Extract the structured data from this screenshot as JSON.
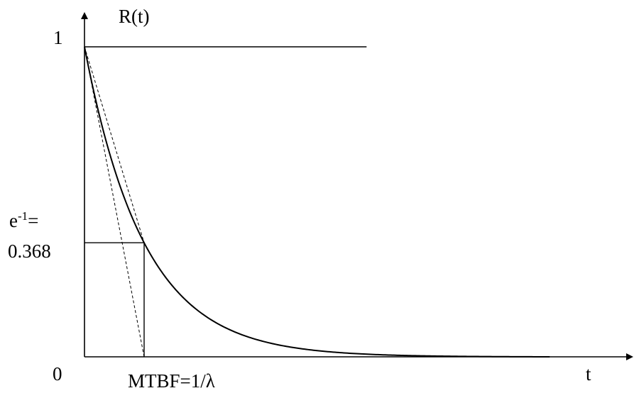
{
  "chart_data": {
    "type": "line",
    "ylabel": "R(t)",
    "xlabel": "t",
    "origin_label": "0",
    "y_tick_label": "1",
    "e_label_base": "e",
    "e_label_exponent": "-1",
    "e_label_suffix": "=",
    "e_value_label": "0.368",
    "mtbf_label": "MTBF=1/λ",
    "xlim": [
      0,
      9
    ],
    "ylim": [
      0,
      1.15
    ],
    "mtbf": 1,
    "reference_level": 1,
    "reference_line_x_end": 4.73,
    "curve_x_end": 7.8,
    "series": [
      {
        "function": "exp(-t)",
        "x": [
          0,
          0.1,
          0.2,
          0.3,
          0.4,
          0.5,
          0.6,
          0.7,
          0.8,
          0.9,
          1.0,
          1.2,
          1.4,
          1.6,
          1.8,
          2.0,
          2.5,
          3.0,
          3.5,
          4.0,
          4.5,
          5.0,
          5.5,
          6.0,
          6.5,
          7.0,
          7.5,
          7.8
        ],
        "values": [
          1.0,
          0.905,
          0.819,
          0.741,
          0.67,
          0.607,
          0.549,
          0.497,
          0.449,
          0.407,
          0.368,
          0.301,
          0.247,
          0.202,
          0.165,
          0.135,
          0.082,
          0.05,
          0.03,
          0.018,
          0.011,
          0.007,
          0.004,
          0.0025,
          0.0015,
          0.0009,
          0.0006,
          0.0
        ]
      }
    ],
    "annotations": [
      {
        "kind": "horizontal-segment",
        "y": 0.368,
        "x_from": 0,
        "x_to": 1
      },
      {
        "kind": "vertical-segment",
        "x": 1,
        "y_from": 0,
        "y_to": 0.368
      },
      {
        "kind": "tangent-line",
        "from": [
          0,
          1
        ],
        "to": [
          1,
          0
        ],
        "style": "dashed"
      },
      {
        "kind": "chord-line",
        "from": [
          0,
          1
        ],
        "to": [
          1,
          0.368
        ],
        "style": "dashed"
      }
    ]
  }
}
